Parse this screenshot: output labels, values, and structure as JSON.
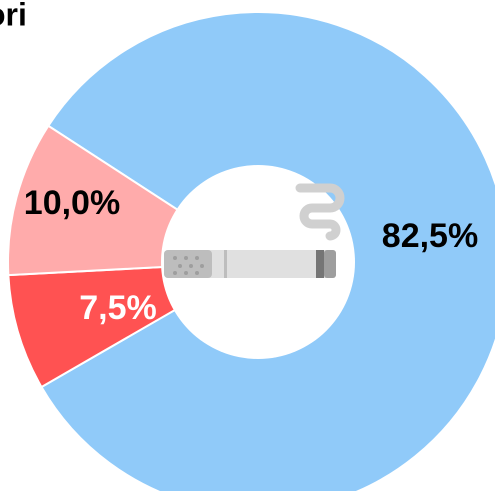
{
  "chart_data": {
    "type": "donut",
    "title": "ori",
    "values": [
      82.5,
      7.5,
      10.0
    ],
    "value_labels": [
      "82,5%",
      "7,5%",
      "10,0%"
    ],
    "colors": [
      "#90caf9",
      "#ff5252",
      "#ffabab"
    ]
  }
}
